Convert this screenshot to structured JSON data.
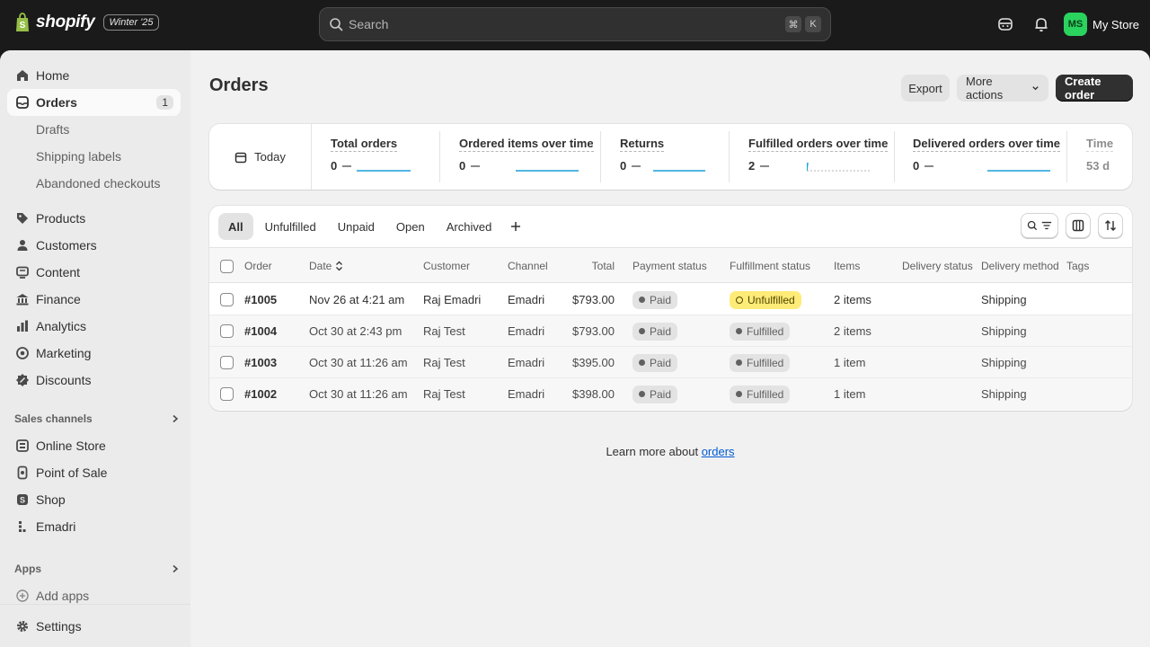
{
  "topbar": {
    "brand": "shopify",
    "edition": "Winter '25",
    "search_placeholder": "Search",
    "shortcut_cmd": "⌘",
    "shortcut_key": "K",
    "store_initials": "MS",
    "store_name": "My Store"
  },
  "sidebar": {
    "items": [
      {
        "label": "Home",
        "icon": "home-icon"
      },
      {
        "label": "Orders",
        "icon": "orders-icon",
        "badge": "1",
        "active": true
      },
      {
        "label": "Drafts",
        "sub": true
      },
      {
        "label": "Shipping labels",
        "sub": true
      },
      {
        "label": "Abandoned checkouts",
        "sub": true
      },
      {
        "label": "Products",
        "icon": "tag-icon"
      },
      {
        "label": "Customers",
        "icon": "person-icon"
      },
      {
        "label": "Content",
        "icon": "content-icon"
      },
      {
        "label": "Finance",
        "icon": "bank-icon"
      },
      {
        "label": "Analytics",
        "icon": "bar-chart-icon"
      },
      {
        "label": "Marketing",
        "icon": "target-icon"
      },
      {
        "label": "Discounts",
        "icon": "discount-icon"
      }
    ],
    "sales_channels_label": "Sales channels",
    "channels": [
      {
        "label": "Online Store",
        "icon": "store-icon"
      },
      {
        "label": "Point of Sale",
        "icon": "pos-icon"
      },
      {
        "label": "Shop",
        "icon": "shop-icon"
      },
      {
        "label": "Emadri",
        "icon": "channel-icon"
      }
    ],
    "apps_label": "Apps",
    "add_apps": "Add apps",
    "settings": "Settings"
  },
  "page": {
    "title": "Orders",
    "export": "Export",
    "more_actions": "More actions",
    "create_order": "Create order"
  },
  "metrics": {
    "today": "Today",
    "items": [
      {
        "label": "Total orders",
        "value": "0"
      },
      {
        "label": "Ordered items over time",
        "value": "0"
      },
      {
        "label": "Returns",
        "value": "0"
      },
      {
        "label": "Fulfilled orders over time",
        "value": "2"
      },
      {
        "label": "Delivered orders over time",
        "value": "0"
      },
      {
        "label": "Time",
        "value": "53 d"
      }
    ]
  },
  "orders": {
    "tabs": [
      "All",
      "Unfulfilled",
      "Unpaid",
      "Open",
      "Archived"
    ],
    "columns": {
      "order": "Order",
      "date": "Date",
      "customer": "Customer",
      "channel": "Channel",
      "total": "Total",
      "payment": "Payment status",
      "fulfillment": "Fulfillment status",
      "items": "Items",
      "delivery_status": "Delivery status",
      "delivery_method": "Delivery method",
      "tags": "Tags"
    },
    "rows": [
      {
        "order": "#1005",
        "date": "Nov 26 at 4:21 am",
        "customer": "Raj Emadri",
        "channel": "Emadri",
        "total": "$793.00",
        "payment": "Paid",
        "fulfillment": "Unfulfilled",
        "items": "2 items",
        "delivery_method": "Shipping"
      },
      {
        "order": "#1004",
        "date": "Oct 30 at 2:43 pm",
        "customer": "Raj Test",
        "channel": "Emadri",
        "total": "$793.00",
        "payment": "Paid",
        "fulfillment": "Fulfilled",
        "items": "2 items",
        "delivery_method": "Shipping"
      },
      {
        "order": "#1003",
        "date": "Oct 30 at 11:26 am",
        "customer": "Raj Test",
        "channel": "Emadri",
        "total": "$395.00",
        "payment": "Paid",
        "fulfillment": "Fulfilled",
        "items": "1 item",
        "delivery_method": "Shipping"
      },
      {
        "order": "#1002",
        "date": "Oct 30 at 11:26 am",
        "customer": "Raj Test",
        "channel": "Emadri",
        "total": "$398.00",
        "payment": "Paid",
        "fulfillment": "Fulfilled",
        "items": "1 item",
        "delivery_method": "Shipping"
      }
    ]
  },
  "footer": {
    "learn_prefix": "Learn more about ",
    "learn_link": "orders"
  },
  "colors": {
    "topbar": "#1a1a1a",
    "accent_green": "#2ad35e",
    "unfulfilled_badge": "#ffeb78",
    "link": "#005bd3"
  }
}
